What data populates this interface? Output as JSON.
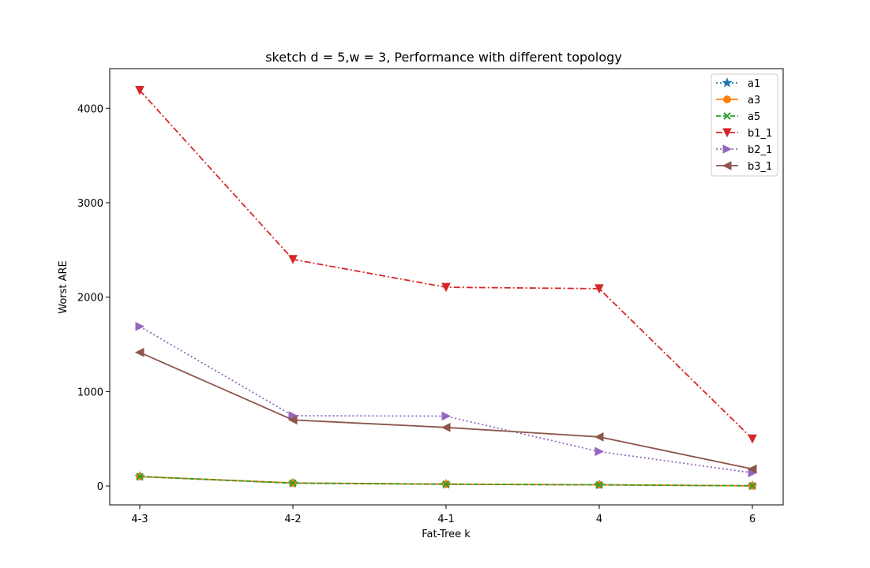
{
  "chart_data": {
    "type": "line",
    "title": "sketch d = 5,w = 3, Performance with different topology",
    "xlabel": "Fat-Tree k",
    "ylabel": "Worst ARE",
    "categories": [
      "4-3",
      "4-2",
      "4-1",
      "4",
      "6"
    ],
    "ylim": [
      -200,
      4420
    ],
    "yticks": [
      0,
      1000,
      2000,
      3000,
      4000
    ],
    "grid": false,
    "legend_position": "top-right",
    "series": [
      {
        "name": "a1",
        "values": [
          100,
          30,
          18,
          12,
          2
        ],
        "color": "#1f77b4",
        "linestyle": "dotted",
        "marker": "star"
      },
      {
        "name": "a3",
        "values": [
          100,
          32,
          20,
          13,
          2
        ],
        "color": "#ff7f0e",
        "linestyle": "solid",
        "marker": "circle"
      },
      {
        "name": "a5",
        "values": [
          100,
          31,
          19,
          12,
          2
        ],
        "color": "#2ca02c",
        "linestyle": "dashed",
        "marker": "x"
      },
      {
        "name": "b1_1",
        "values": [
          4190,
          2400,
          2105,
          2090,
          500
        ],
        "color": "#d62728",
        "linestyle": "dashdot",
        "marker": "triangle-down"
      },
      {
        "name": "b2_1",
        "values": [
          1690,
          745,
          740,
          365,
          140
        ],
        "color": "#9467bd",
        "linestyle": "dotted",
        "marker": "triangle-right"
      },
      {
        "name": "b3_1",
        "values": [
          1415,
          700,
          620,
          520,
          180
        ],
        "color": "#8c564b",
        "linestyle": "solid",
        "marker": "triangle-left"
      }
    ]
  }
}
